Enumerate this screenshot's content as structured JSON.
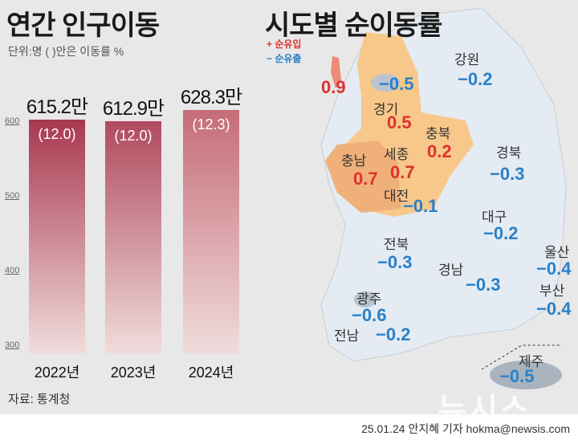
{
  "left": {
    "title": "연간 인구이동",
    "subtitle": "단위:명 ( )안은 이동률 %",
    "source": "자료: 통계청"
  },
  "chart_data": {
    "type": "bar",
    "categories": [
      "2022년",
      "2023년",
      "2024년"
    ],
    "values": [
      615.2,
      612.9,
      628.3
    ],
    "value_labels": [
      "615.2만",
      "612.9만",
      "628.3만"
    ],
    "rates": [
      "(12.0)",
      "(12.0)",
      "(12.3)"
    ],
    "yticks": [
      "300",
      "400",
      "500",
      "600"
    ],
    "ylim": [
      300,
      640
    ],
    "grid": false,
    "bar_colors": [
      "#a8384f",
      "#b04a5e",
      "#c56c77"
    ]
  },
  "right": {
    "title": "시도별 순이동률",
    "legend": [
      {
        "label": "+ 순유입",
        "color": "#e03030"
      },
      {
        "label": "− 순유출",
        "color": "#2a80c8"
      }
    ],
    "regions": [
      {
        "name": "",
        "value": "0.9",
        "sign": "plus"
      },
      {
        "name": "",
        "value": "−0.5",
        "sign": "minus"
      },
      {
        "name": "강원",
        "value": "−0.2",
        "sign": "minus"
      },
      {
        "name": "경기",
        "value": "0.5",
        "sign": "plus"
      },
      {
        "name": "충북",
        "value": "0.2",
        "sign": "plus"
      },
      {
        "name": "충남",
        "value": "0.7",
        "sign": "plus"
      },
      {
        "name": "세종",
        "value": "0.7",
        "sign": "plus"
      },
      {
        "name": "대전",
        "value": "−0.1",
        "sign": "minus"
      },
      {
        "name": "경북",
        "value": "−0.3",
        "sign": "minus"
      },
      {
        "name": "대구",
        "value": "−0.2",
        "sign": "minus"
      },
      {
        "name": "전북",
        "value": "−0.3",
        "sign": "minus"
      },
      {
        "name": "울산",
        "value": "−0.4",
        "sign": "minus"
      },
      {
        "name": "경남",
        "value": "−0.3",
        "sign": "minus"
      },
      {
        "name": "부산",
        "value": "−0.4",
        "sign": "minus"
      },
      {
        "name": "광주",
        "value": "−0.6",
        "sign": "minus"
      },
      {
        "name": "전남",
        "value": "−0.2",
        "sign": "minus"
      },
      {
        "name": "제주",
        "value": "−0.5",
        "sign": "minus"
      }
    ]
  },
  "watermark": "뉴시스",
  "credit": "25.01.24 안지혜 기자 hokma@newsis.com"
}
